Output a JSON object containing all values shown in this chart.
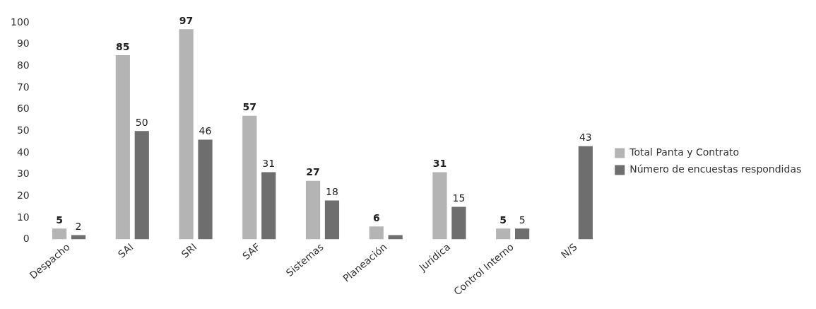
{
  "chart_data": {
    "type": "bar",
    "categories": [
      "Despacho",
      "SAI",
      "SRI",
      "SAF",
      "Sistemas",
      "Planeación",
      "Jurídica",
      "Control Interno",
      "N/S"
    ],
    "series": [
      {
        "name": "Total Panta y Contrato",
        "color": "#b4b4b4",
        "values": [
          5,
          85,
          97,
          57,
          27,
          6,
          31,
          5,
          null
        ],
        "value_labels": [
          "5",
          "85",
          "97",
          "57",
          "27",
          "6",
          "31",
          "5",
          null
        ]
      },
      {
        "name": "Número de encuestas respondidas",
        "color": "#6e6e6e",
        "values": [
          2,
          50,
          46,
          31,
          18,
          2,
          15,
          5,
          43
        ],
        "value_labels": [
          "2",
          "50",
          "46",
          "31",
          "18",
          null,
          "15",
          "5",
          "43"
        ]
      }
    ],
    "ylim": [
      0,
      100
    ],
    "yticks": [
      0,
      10,
      20,
      30,
      40,
      50,
      60,
      70,
      80,
      90,
      100
    ],
    "grid": false,
    "legend": "right"
  }
}
